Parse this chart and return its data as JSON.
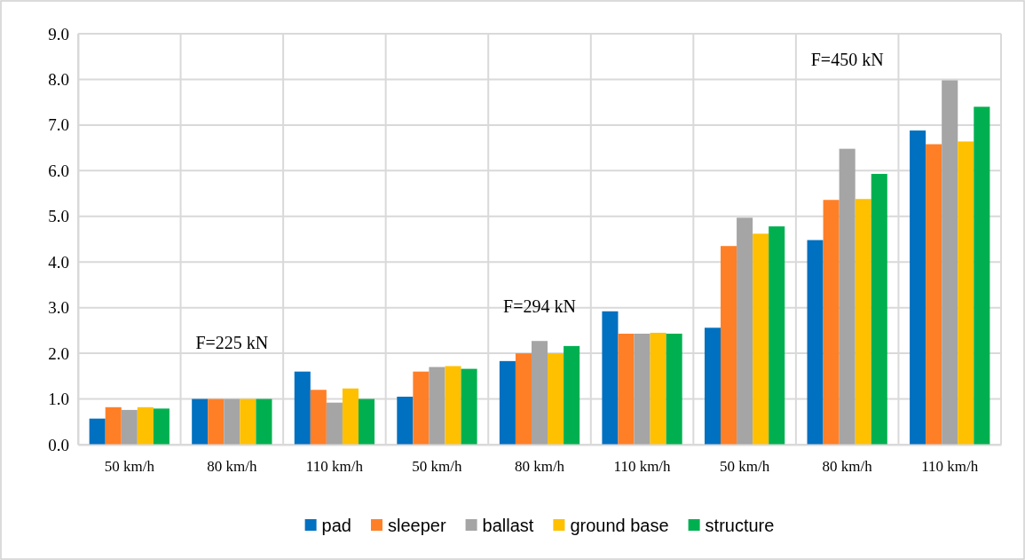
{
  "chart_data": {
    "type": "bar",
    "categories": [
      "50 km/h",
      "80 km/h",
      "110 km/h",
      "50 km/h",
      "80 km/h",
      "110 km/h",
      "50 km/h",
      "80 km/h",
      "110 km/h"
    ],
    "series": [
      {
        "name": "pad",
        "color": "#0070c0",
        "values": [
          0.57,
          1.0,
          1.6,
          1.05,
          1.83,
          2.92,
          2.56,
          4.48,
          6.88
        ]
      },
      {
        "name": "sleeper",
        "color": "#ff7f27",
        "values": [
          0.82,
          1.0,
          1.2,
          1.6,
          2.0,
          2.43,
          4.35,
          5.36,
          6.58
        ]
      },
      {
        "name": "ballast",
        "color": "#a5a5a5",
        "values": [
          0.76,
          1.0,
          0.92,
          1.7,
          2.27,
          2.43,
          4.97,
          6.48,
          7.98
        ]
      },
      {
        "name": "ground base",
        "color": "#ffc000",
        "values": [
          0.82,
          1.0,
          1.23,
          1.72,
          2.0,
          2.45,
          4.62,
          5.38,
          6.64
        ]
      },
      {
        "name": "structure",
        "color": "#00b050",
        "values": [
          0.79,
          1.0,
          1.0,
          1.66,
          2.16,
          2.43,
          4.78,
          5.93,
          7.4
        ]
      }
    ],
    "ylim": [
      0,
      9
    ],
    "yticks": [
      {
        "value": 0,
        "label": "0.0"
      },
      {
        "value": 1,
        "label": "1.0"
      },
      {
        "value": 2,
        "label": "2.0"
      },
      {
        "value": 3,
        "label": "3.0"
      },
      {
        "value": 4,
        "label": "4.0"
      },
      {
        "value": 5,
        "label": "5.0"
      },
      {
        "value": 6,
        "label": "6.0"
      },
      {
        "value": 7,
        "label": "7.0"
      },
      {
        "value": 8,
        "label": "8.0"
      },
      {
        "value": 9,
        "label": "9.0"
      }
    ],
    "grid": true,
    "legend": "bottom",
    "annotations": [
      "F=225 kN",
      "F=294 kN",
      "F=450 kN"
    ]
  }
}
